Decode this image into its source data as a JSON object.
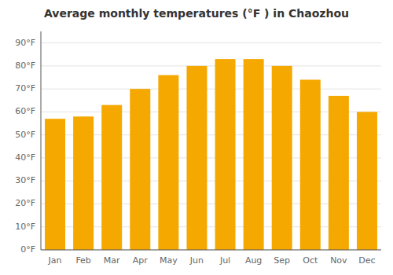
{
  "chart_data": {
    "type": "bar",
    "title": "Average monthly temperatures (°F ) in Chaozhou",
    "categories": [
      "Jan",
      "Feb",
      "Mar",
      "Apr",
      "May",
      "Jun",
      "Jul",
      "Aug",
      "Sep",
      "Oct",
      "Nov",
      "Dec"
    ],
    "values": [
      57,
      58,
      63,
      70,
      76,
      80,
      83,
      83,
      80,
      74,
      67,
      60
    ],
    "color": "#F5A800",
    "ylim": [
      0,
      95
    ],
    "yticks": [
      {
        "value": 0,
        "label": "0°F"
      },
      {
        "value": 10,
        "label": "10°F"
      },
      {
        "value": 20,
        "label": "20°F"
      },
      {
        "value": 30,
        "label": "30°F"
      },
      {
        "value": 40,
        "label": "40°F"
      },
      {
        "value": 50,
        "label": "50°F"
      },
      {
        "value": 60,
        "label": "60°F"
      },
      {
        "value": 70,
        "label": "70°F"
      },
      {
        "value": 80,
        "label": "80°F"
      },
      {
        "value": 90,
        "label": "90°F"
      }
    ],
    "grid": true
  }
}
